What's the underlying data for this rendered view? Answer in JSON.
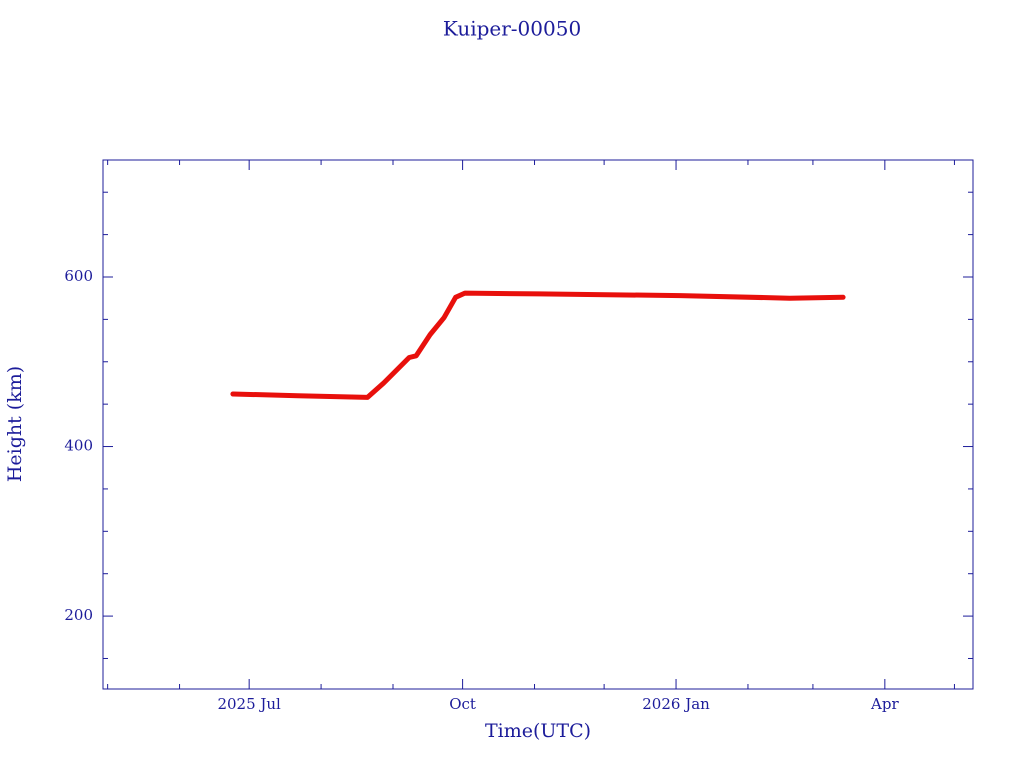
{
  "chart_data": {
    "type": "line",
    "title": "Kuiper-00050",
    "x_label": "Time(UTC)",
    "y_label": "Height (km)",
    "xlim": [
      "2025-04-29",
      "2026-05-09"
    ],
    "xticks": [
      {
        "value": "2025-07-01",
        "label": "2025 Jul"
      },
      {
        "value": "2025-10-01",
        "label": "Oct"
      },
      {
        "value": "2026-01-01",
        "label": "2026 Jan"
      },
      {
        "value": "2026-04-01",
        "label": "Apr"
      }
    ],
    "xminorticks": [
      "2025-05-01",
      "2025-06-01",
      "2025-08-01",
      "2025-09-01",
      "2025-11-01",
      "2025-12-01",
      "2026-02-01",
      "2026-03-01",
      "2026-05-01"
    ],
    "ylim": [
      114,
      738
    ],
    "yticks": [
      200,
      400,
      600
    ],
    "yminorticks": [
      150,
      250,
      300,
      350,
      450,
      500,
      550,
      650,
      700
    ],
    "grid": false,
    "series": [
      {
        "name": "Height",
        "color": "#e8100c",
        "x": [
          "2025-06-24",
          "2025-07-22",
          "2025-08-21",
          "2025-08-28",
          "2025-09-08",
          "2025-09-11",
          "2025-09-17",
          "2025-09-23",
          "2025-09-28",
          "2025-10-02",
          "2025-11-03",
          "2026-01-03",
          "2026-02-19",
          "2026-03-14"
        ],
        "values": [
          462,
          460,
          458,
          475,
          505,
          507,
          532,
          552,
          576,
          581,
          580,
          578,
          575,
          576
        ]
      }
    ]
  }
}
